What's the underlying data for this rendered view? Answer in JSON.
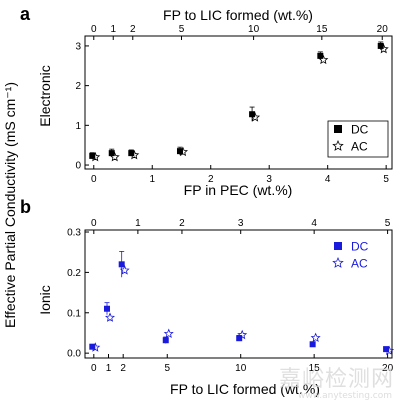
{
  "figure": {
    "shared_ylabel": "Effective Partial Conductivity (mS cm⁻¹)",
    "watermark": "嘉峪检测网",
    "watermark_url": "www.anytesting.com"
  },
  "chart_data": [
    {
      "type": "scatter",
      "panel_letter": "a",
      "top_xlabel": "FP to LIC formed (wt.%)",
      "top_ticks": [
        "0",
        "1",
        "2",
        "5",
        "10",
        "15",
        "20"
      ],
      "top_tick_at_bottom": [
        0,
        0.333,
        0.667,
        1.5,
        2.733,
        3.9,
        4.933
      ],
      "xlabel": "FP in PEC (wt.%)",
      "xticks": [
        "0",
        "1",
        "2",
        "3",
        "4",
        "5"
      ],
      "xlim": [
        -0.15,
        5.1
      ],
      "ylabel": "Electronic",
      "yticks": [
        "0",
        "1",
        "2",
        "3"
      ],
      "ylim": [
        -0.1,
        3.25
      ],
      "legend": {
        "placement": "bottom-right"
      },
      "series": [
        {
          "name": "DC",
          "marker": "square",
          "color": "#000000",
          "x": [
            0,
            0.333,
            0.667,
            1.5,
            2.733,
            3.9,
            4.933
          ],
          "y": [
            0.23,
            0.3,
            0.3,
            0.35,
            1.28,
            2.75,
            3.0
          ],
          "err": [
            0.08,
            0.1,
            0.08,
            0.1,
            0.18,
            0.1,
            0.1
          ]
        },
        {
          "name": "AC",
          "marker": "star",
          "color": "#000000",
          "x": [
            0,
            0.333,
            0.667,
            1.5,
            2.733,
            3.9,
            4.933
          ],
          "y": [
            0.2,
            0.2,
            0.25,
            0.33,
            1.2,
            2.65,
            2.92
          ]
        }
      ]
    },
    {
      "type": "scatter",
      "panel_letter": "b",
      "top_xlabel": "FP in PEC (wt.%)",
      "top_ticks": [
        "0",
        "1",
        "2",
        "3",
        "4",
        "5"
      ],
      "top_tick_at_bottom": [
        0,
        3,
        6,
        10,
        15,
        20
      ],
      "xlabel": "FP to LIC formed (wt.%)",
      "xticks": [
        "0",
        "1",
        "2",
        "5",
        "10",
        "15",
        "20"
      ],
      "xtick_values": [
        0,
        1,
        2,
        5,
        10,
        15,
        20
      ],
      "xlim": [
        -0.6,
        20.3
      ],
      "ylabel": "Ionic",
      "yticks": [
        "0.0",
        "0.1",
        "0.2",
        "0.3"
      ],
      "ylim": [
        -0.012,
        0.305
      ],
      "legend": {
        "placement": "top-right"
      },
      "series": [
        {
          "name": "DC",
          "marker": "square",
          "color": "#1a1adc",
          "x": [
            0,
            1,
            2,
            5,
            10,
            15,
            20
          ],
          "y": [
            0.016,
            0.11,
            0.22,
            0.032,
            0.037,
            0.022,
            0.01
          ],
          "err": [
            0.004,
            0.015,
            0.032,
            0.008,
            0.007,
            0.005,
            0.004
          ]
        },
        {
          "name": "AC",
          "marker": "star",
          "color": "#1a1adc",
          "x": [
            0,
            1,
            2,
            5,
            10,
            15,
            20
          ],
          "y": [
            0.014,
            0.088,
            0.205,
            0.048,
            0.045,
            0.038,
            0.006
          ]
        }
      ]
    }
  ]
}
